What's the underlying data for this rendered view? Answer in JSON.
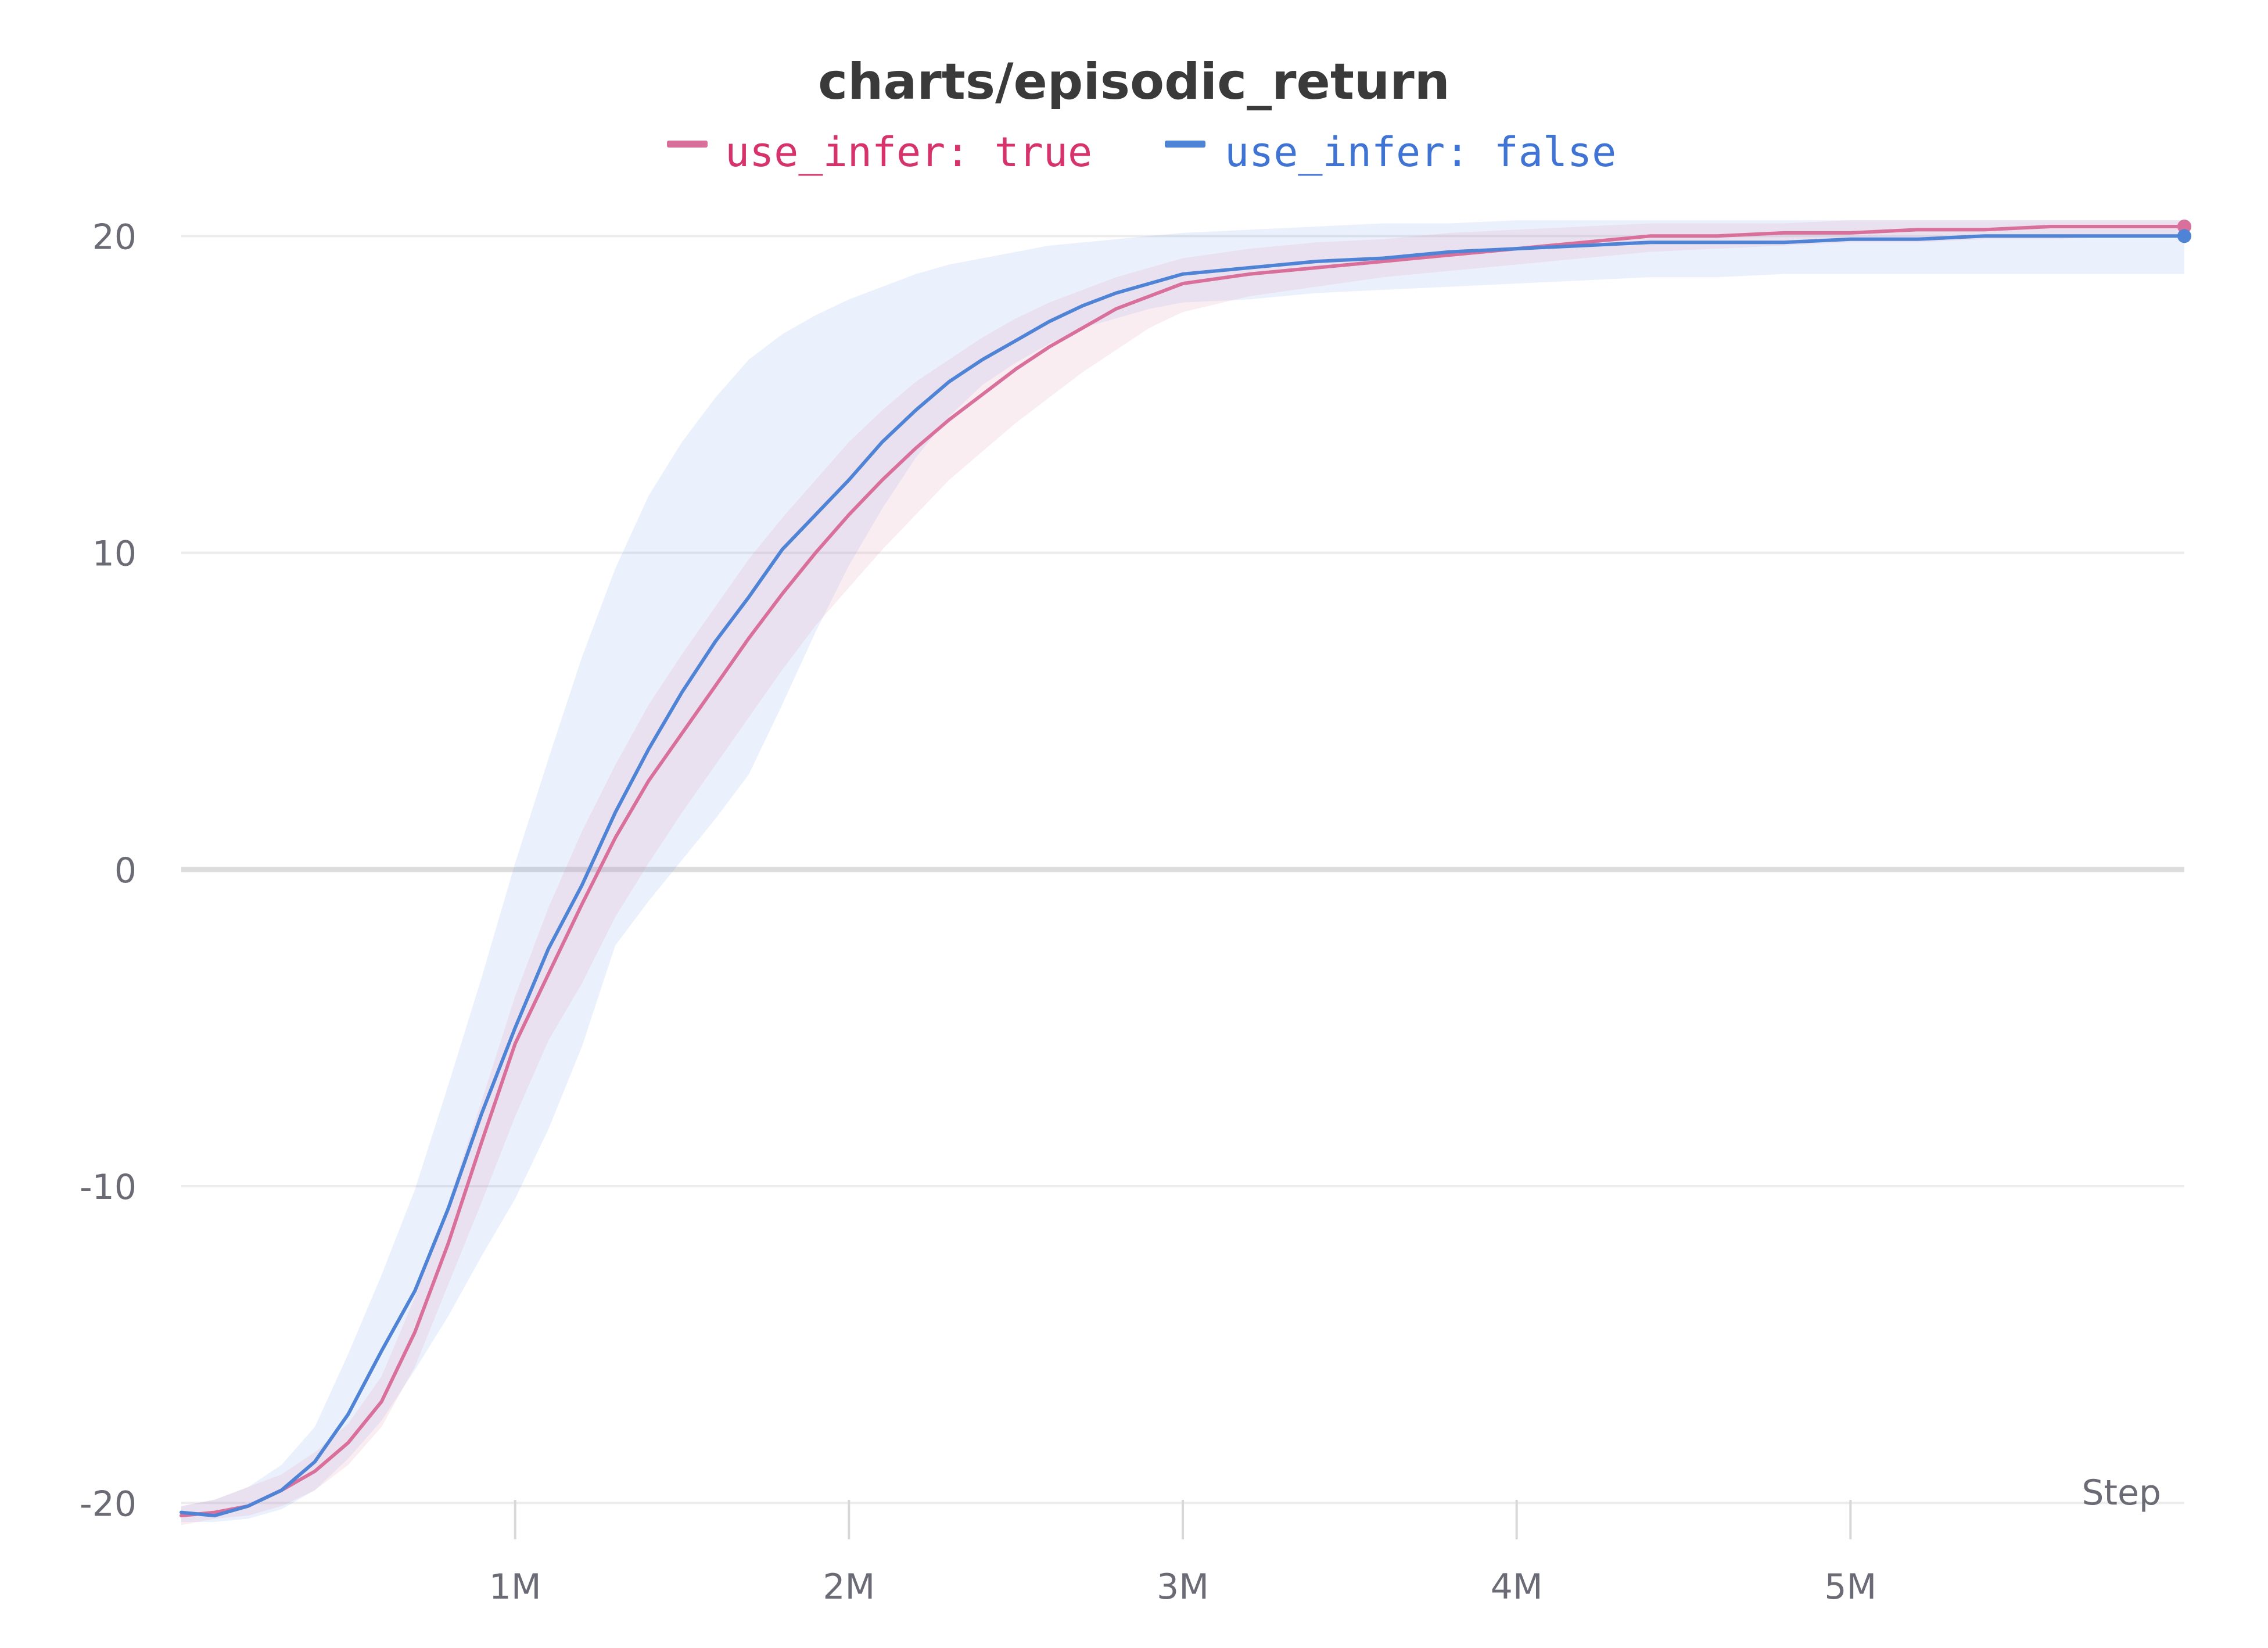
{
  "colors": {
    "series_true": "#d9709c",
    "series_false": "#4f83d6",
    "legend_true": "#d6336c",
    "legend_false": "#3f74d4"
  },
  "chart_data": {
    "type": "line",
    "title": "charts/episodic_return",
    "xlabel": "Step",
    "ylabel": "",
    "xlim": [
      0,
      6000000
    ],
    "ylim": [
      -20.6,
      21.4
    ],
    "grid": true,
    "legend_placement": "top-center",
    "x_ticks": [
      {
        "value": 1000000,
        "label": "1M"
      },
      {
        "value": 2000000,
        "label": "2M"
      },
      {
        "value": 3000000,
        "label": "3M"
      },
      {
        "value": 4000000,
        "label": "4M"
      },
      {
        "value": 5000000,
        "label": "5M"
      }
    ],
    "y_ticks": [
      {
        "value": 20,
        "label": "20"
      },
      {
        "value": 10,
        "label": "10"
      },
      {
        "value": 0,
        "label": "0"
      },
      {
        "value": -10,
        "label": "-10"
      },
      {
        "value": -20,
        "label": "-20"
      }
    ],
    "x": [
      0,
      100000,
      200000,
      300000,
      400000,
      500000,
      600000,
      700000,
      800000,
      900000,
      1000000,
      1100000,
      1200000,
      1300000,
      1400000,
      1500000,
      1600000,
      1700000,
      1800000,
      1900000,
      2000000,
      2100000,
      2200000,
      2300000,
      2400000,
      2500000,
      2600000,
      2700000,
      2800000,
      2900000,
      3000000,
      3200000,
      3400000,
      3600000,
      3800000,
      4000000,
      4200000,
      4400000,
      4600000,
      4800000,
      5000000,
      5200000,
      5400000,
      5600000,
      5800000,
      6000000
    ],
    "series": [
      {
        "name": "use_infer: true",
        "values": [
          -20.4,
          -20.3,
          -20.1,
          -19.6,
          -19.0,
          -18.1,
          -16.8,
          -14.6,
          -11.8,
          -8.6,
          -5.5,
          -3.3,
          -1.1,
          1.0,
          2.8,
          4.3,
          5.8,
          7.3,
          8.7,
          10.0,
          11.2,
          12.3,
          13.3,
          14.2,
          15.0,
          15.8,
          16.5,
          17.1,
          17.7,
          18.1,
          18.5,
          18.8,
          19.0,
          19.2,
          19.4,
          19.6,
          19.8,
          20.0,
          20.0,
          20.1,
          20.1,
          20.2,
          20.2,
          20.3,
          20.3,
          20.3
        ],
        "band_upper": [
          -20.1,
          -19.9,
          -19.5,
          -19.1,
          -18.4,
          -17.5,
          -16.0,
          -13.5,
          -10.5,
          -7.3,
          -4.0,
          -1.2,
          1.2,
          3.3,
          5.2,
          6.8,
          8.3,
          9.8,
          11.1,
          12.3,
          13.5,
          14.5,
          15.4,
          16.1,
          16.8,
          17.4,
          17.9,
          18.3,
          18.7,
          19.0,
          19.3,
          19.6,
          19.8,
          19.9,
          20.1,
          20.2,
          20.3,
          20.4,
          20.4,
          20.4,
          20.5,
          20.5,
          20.5,
          20.5,
          20.5,
          20.5
        ],
        "band_lower": [
          -20.7,
          -20.5,
          -20.4,
          -20.1,
          -19.6,
          -18.8,
          -17.6,
          -15.7,
          -13.1,
          -10.5,
          -7.8,
          -5.4,
          -3.6,
          -1.5,
          0.2,
          1.8,
          3.3,
          4.8,
          6.3,
          7.7,
          8.9,
          10.1,
          11.2,
          12.3,
          13.2,
          14.1,
          14.9,
          15.7,
          16.4,
          17.1,
          17.6,
          18.1,
          18.4,
          18.7,
          18.9,
          19.1,
          19.3,
          19.5,
          19.6,
          19.7,
          19.8,
          19.8,
          19.9,
          19.9,
          20.0,
          20.0
        ]
      },
      {
        "name": "use_infer: false",
        "values": [
          -20.3,
          -20.4,
          -20.1,
          -19.6,
          -18.7,
          -17.2,
          -15.2,
          -13.3,
          -10.7,
          -7.7,
          -5.0,
          -2.5,
          -0.5,
          1.8,
          3.8,
          5.6,
          7.2,
          8.6,
          10.1,
          11.2,
          12.3,
          13.5,
          14.5,
          15.4,
          16.1,
          16.7,
          17.3,
          17.8,
          18.2,
          18.5,
          18.8,
          19.0,
          19.2,
          19.3,
          19.5,
          19.6,
          19.7,
          19.8,
          19.8,
          19.8,
          19.9,
          19.9,
          20.0,
          20.0,
          20.0,
          20.0
        ],
        "band_upper": [
          -20.1,
          -19.9,
          -19.5,
          -18.8,
          -17.6,
          -15.3,
          -12.8,
          -10.1,
          -6.8,
          -3.4,
          0.2,
          3.5,
          6.7,
          9.5,
          11.8,
          13.5,
          14.9,
          16.1,
          16.9,
          17.5,
          18.0,
          18.4,
          18.8,
          19.1,
          19.3,
          19.5,
          19.7,
          19.8,
          19.9,
          20.0,
          20.1,
          20.2,
          20.3,
          20.4,
          20.4,
          20.5,
          20.5,
          20.5,
          20.5,
          20.5,
          20.5,
          20.5,
          20.5,
          20.5,
          20.5,
          20.5
        ],
        "band_lower": [
          -20.6,
          -20.6,
          -20.5,
          -20.2,
          -19.6,
          -18.6,
          -17.4,
          -15.8,
          -14.1,
          -12.2,
          -10.4,
          -8.2,
          -5.6,
          -2.4,
          -1.0,
          0.3,
          1.6,
          3.0,
          5.2,
          7.5,
          9.6,
          11.4,
          13.0,
          14.3,
          15.3,
          16.0,
          16.6,
          17.1,
          17.4,
          17.7,
          17.9,
          18.0,
          18.2,
          18.3,
          18.4,
          18.5,
          18.6,
          18.7,
          18.7,
          18.8,
          18.8,
          18.8,
          18.8,
          18.8,
          18.8,
          18.8
        ]
      }
    ]
  }
}
